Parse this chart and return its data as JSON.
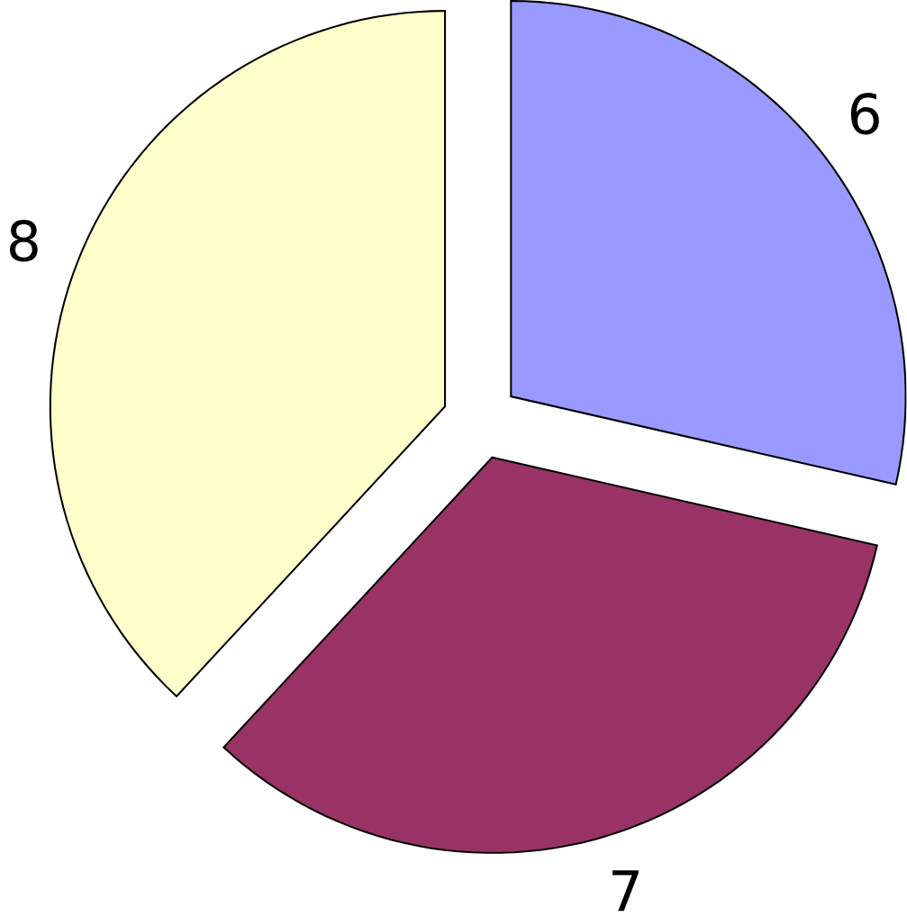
{
  "chart_data": {
    "type": "pie",
    "categories": [
      null,
      null,
      null
    ],
    "values": [
      6,
      7,
      8
    ],
    "colors": [
      "#9999ff",
      "#993366",
      "#ffffcc"
    ],
    "data_labels": true
  }
}
